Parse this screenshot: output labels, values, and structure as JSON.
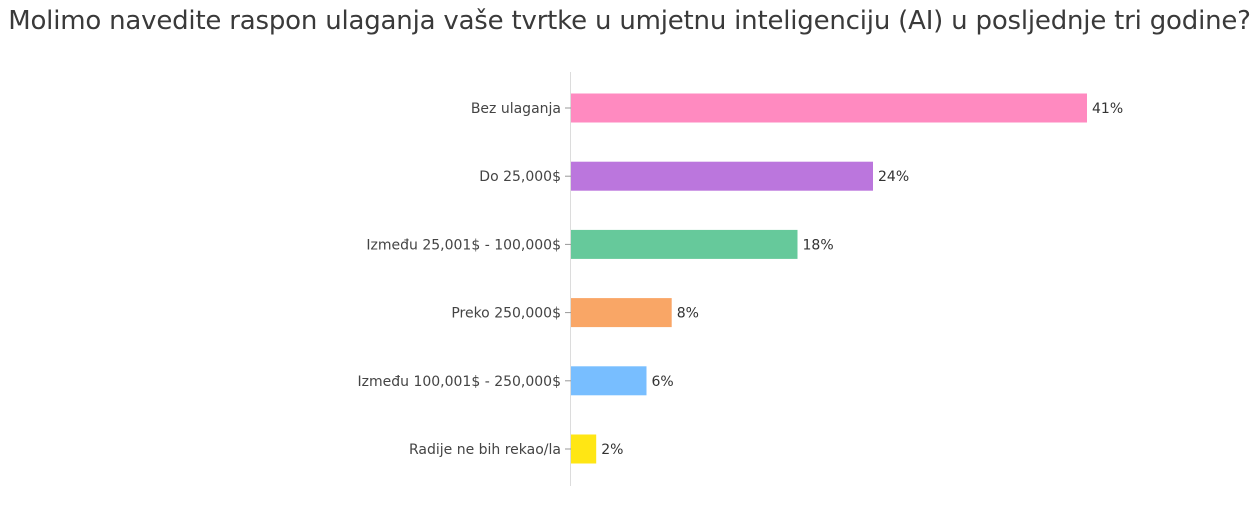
{
  "title": "Molimo navedite raspon ulaganja vaše tvrtke u umjetnu inteligenciju (AI) u posljednje tri godine?",
  "chart_data": {
    "type": "bar",
    "orientation": "horizontal",
    "title": "Molimo navedite raspon ulaganja vaše tvrtke u umjetnu inteligenciju (AI) u posljednje tri godine?",
    "categories": [
      "Bez ulaganja",
      "Do 25,000$",
      "Između 25,001$ - 100,000$",
      "Preko 250,000$",
      "Između 100,001$ - 250,000$",
      "Radije ne bih rekao/la"
    ],
    "values": [
      41,
      24,
      18,
      8,
      6,
      2
    ],
    "value_labels": [
      "41%",
      "24%",
      "18%",
      "8%",
      "6%",
      "2%"
    ],
    "colors": [
      "#FF8AC0",
      "#BB76DD",
      "#66C99B",
      "#F9A666",
      "#78BEFF",
      "#FFE614"
    ],
    "xlim": [
      0,
      41
    ],
    "unit": "%",
    "grid": false,
    "legend": "none"
  }
}
